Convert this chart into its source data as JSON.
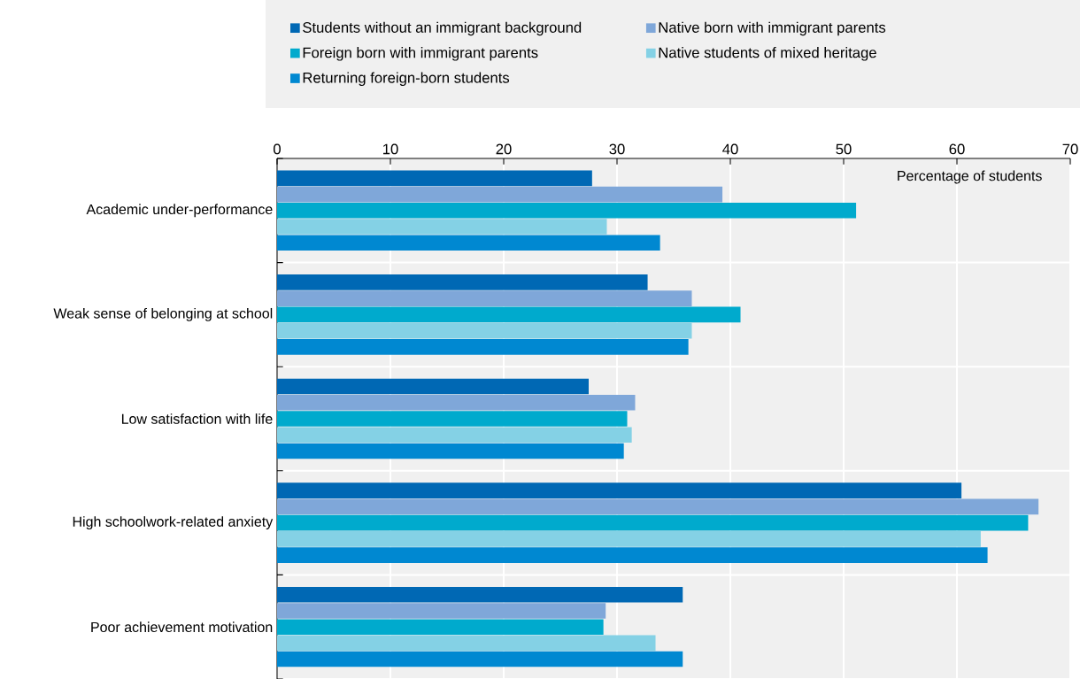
{
  "chart_data": {
    "type": "bar",
    "orientation": "horizontal",
    "xlabel": "Percentage of students",
    "categories": [
      "Academic under-performance",
      "Weak sense of belonging at school",
      "Low satisfaction with life",
      "High schoolwork-related anxiety",
      "Poor achievement motivation"
    ],
    "series": [
      {
        "name": "Students without an immigrant background",
        "color": "#0068b4",
        "values": [
          27.8,
          32.7,
          27.5,
          60.4,
          35.8
        ]
      },
      {
        "name": "Native born with immigrant parents",
        "color": "#7fa7d9",
        "values": [
          39.3,
          36.6,
          31.6,
          67.2,
          29.0
        ]
      },
      {
        "name": "Foreign born with immigrant parents",
        "color": "#00aacd",
        "values": [
          51.1,
          40.9,
          30.9,
          66.3,
          28.8
        ]
      },
      {
        "name": "Native students of mixed heritage",
        "color": "#84d1e5",
        "values": [
          29.1,
          36.6,
          31.3,
          62.1,
          33.4
        ]
      },
      {
        "name": "Returning foreign-born students",
        "color": "#0088d1",
        "values": [
          33.8,
          36.3,
          30.6,
          62.7,
          35.8
        ]
      }
    ],
    "xlim": [
      0,
      70
    ],
    "xticks": [
      0,
      10,
      20,
      30,
      40,
      50,
      60,
      70
    ],
    "grid": true,
    "legend": "top"
  }
}
